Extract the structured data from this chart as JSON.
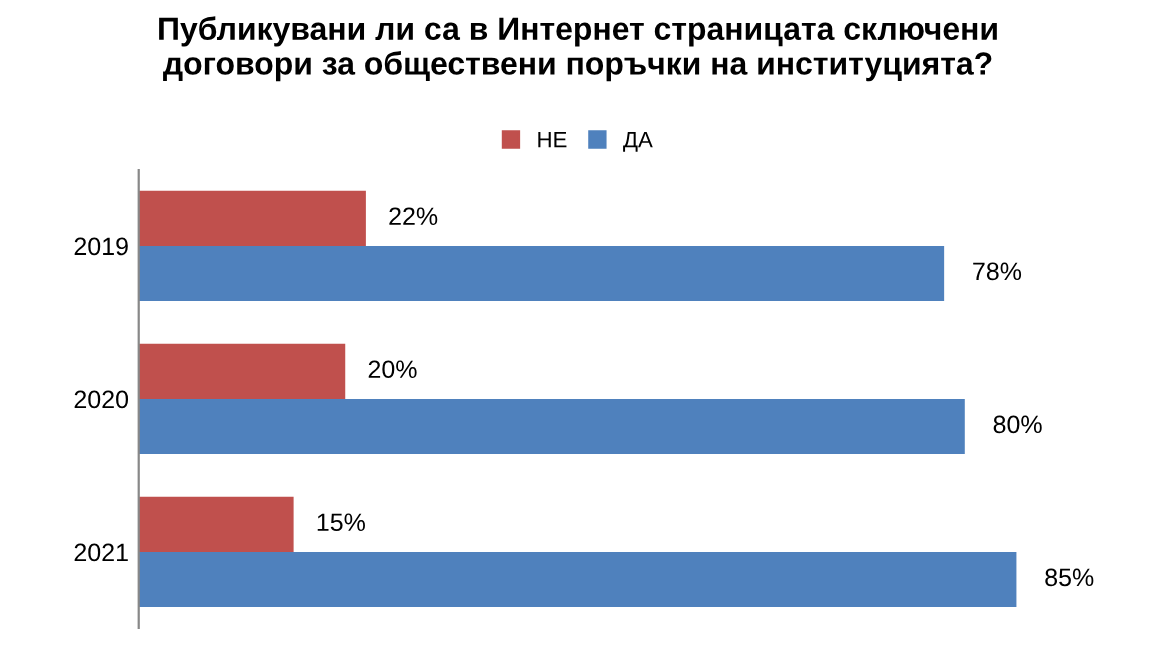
{
  "chart_data": {
    "type": "bar",
    "orientation": "horizontal",
    "title": "Публикувани ли са в Интернет страницата сключени\nдоговори за обществени поръчки на институцията?",
    "categories": [
      "2019",
      "2020",
      "2021"
    ],
    "series": [
      {
        "name": "НЕ",
        "color": "#c0504d",
        "values": [
          22,
          20,
          15
        ],
        "value_labels": [
          "22%",
          "20%",
          "15%"
        ]
      },
      {
        "name": "ДА",
        "color": "#4f81bd",
        "values": [
          78,
          80,
          85
        ],
        "value_labels": [
          "78%",
          "80%",
          "85%"
        ]
      }
    ],
    "legend": "top",
    "grid": false,
    "tick_labels": "y"
  }
}
